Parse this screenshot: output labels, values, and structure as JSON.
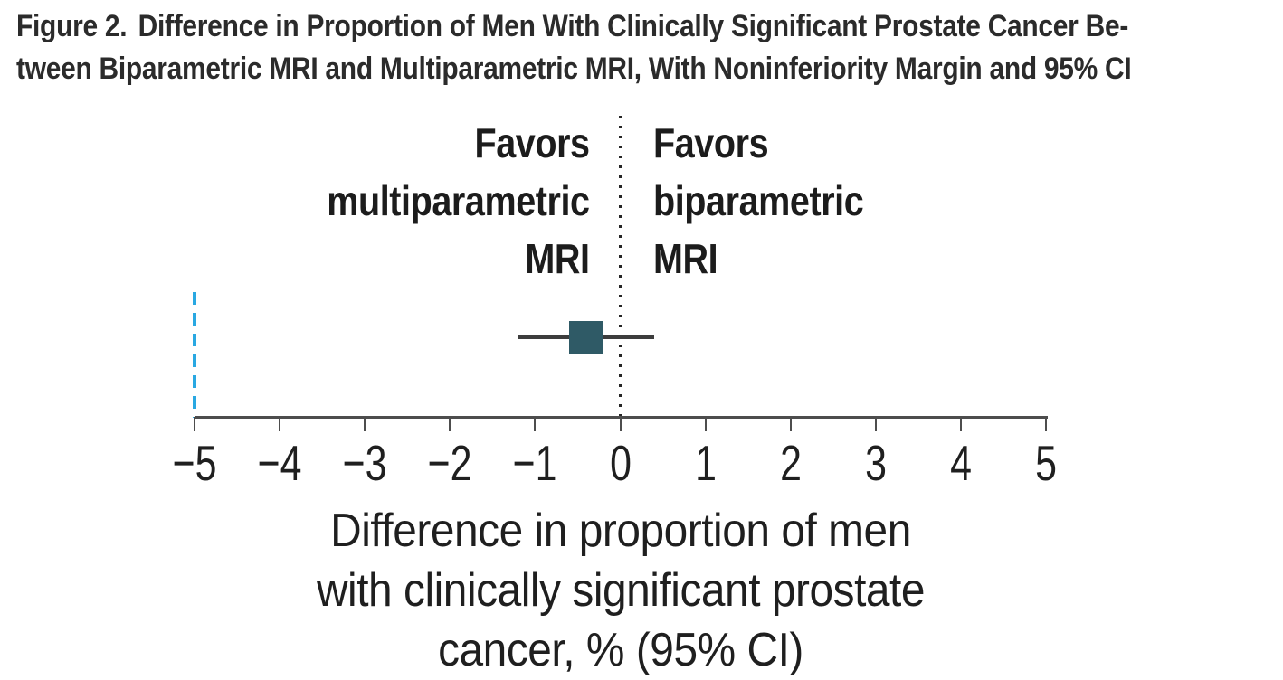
{
  "figure": {
    "title_prefix": "Figure 2.",
    "title_line1_rest": "Difference in Proportion of Men With Clinically Significant Prostate Cancer Be-",
    "title_line2": "tween Biparametric MRI and Multiparametric MRI, With Noninferiority Margin and 95% CI"
  },
  "chart_data": {
    "type": "forest",
    "point_estimate": -0.4,
    "ci_lower": -1.2,
    "ci_upper": 0.4,
    "ci_level": "95% CI",
    "noninferiority_margin": -5,
    "zero_reference": 0,
    "xlim": [
      -5,
      5
    ],
    "ticks": [
      -5,
      -4,
      -3,
      -2,
      -1,
      0,
      1,
      2,
      3,
      4,
      5
    ],
    "tick_labels": [
      "−5",
      "−4",
      "−3",
      "−2",
      "−1",
      "0",
      "1",
      "2",
      "3",
      "4",
      "5"
    ],
    "left_region_label_lines": [
      "Favors",
      "multiparametric",
      "MRI"
    ],
    "right_region_label_lines": [
      "Favors",
      "biparametric",
      "MRI"
    ],
    "xlabel_lines": [
      "Difference in proportion of men",
      "with clinically significant prostate",
      "cancer, % (95% CI)"
    ],
    "grid": false,
    "legend": false,
    "colors": {
      "marker": "#2f5a66",
      "margin_line": "#29a8e2",
      "ci_line": "#3d3d3d",
      "axis": "#4d4d4d",
      "zero_line": "#262626"
    }
  }
}
